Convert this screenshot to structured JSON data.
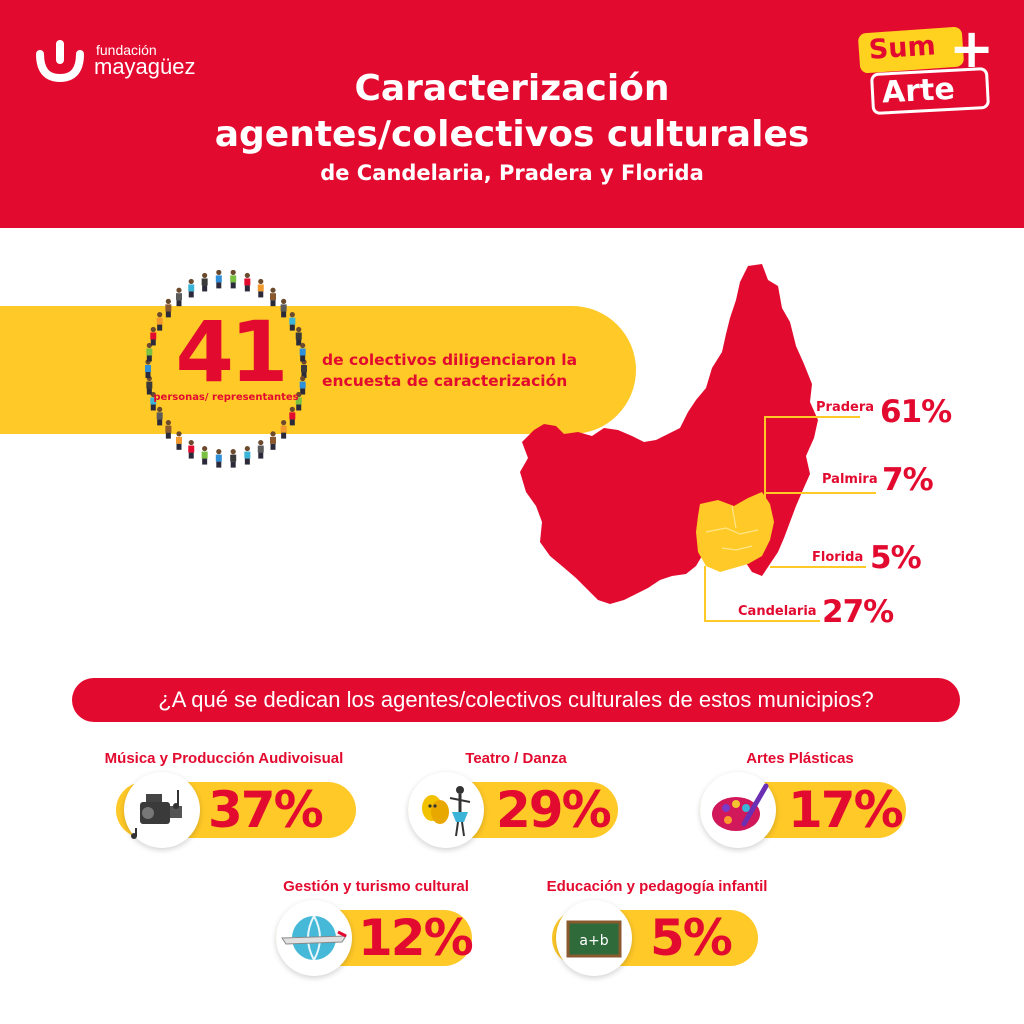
{
  "brand": {
    "logo_line1": "fundación",
    "logo_line2": "mayagüez",
    "badge_sum": "Sum",
    "badge_plus": "+",
    "badge_arte": "Arte"
  },
  "title": {
    "line1": "Caracterización",
    "line2": "agentes/colectivos culturales",
    "line3": "de Candelaria, Pradera y Florida"
  },
  "survey": {
    "count": "41",
    "count_label": "personas/ representantes",
    "description": "de colectivos diligenciaron la encuesta de caracterización"
  },
  "municipalities": [
    {
      "name": "Pradera",
      "percent": "61%",
      "value": 61
    },
    {
      "name": "Palmira",
      "percent": "7%",
      "value": 7
    },
    {
      "name": "Florida",
      "percent": "5%",
      "value": 5
    },
    {
      "name": "Candelaria",
      "percent": "27%",
      "value": 27
    }
  ],
  "question": "¿A qué se dedican los agentes/colectivos culturales de estos municipios?",
  "categories": [
    {
      "label": "Música y Producción Audivoisual",
      "percent": "37%",
      "value": 37,
      "icon": "video-camera-icon"
    },
    {
      "label": "Teatro / Danza",
      "percent": "29%",
      "value": 29,
      "icon": "theater-masks-icon"
    },
    {
      "label": "Artes Plásticas",
      "percent": "17%",
      "value": 17,
      "icon": "paint-palette-icon"
    },
    {
      "label": "Gestión y turismo cultural",
      "percent": "12%",
      "value": 12,
      "icon": "globe-airplane-icon"
    },
    {
      "label": "Educación y pedagogía infantil",
      "percent": "5%",
      "value": 5,
      "icon": "chalkboard-icon"
    }
  ],
  "colors": {
    "red": "#e30a2f",
    "yellow": "#ffc928",
    "white": "#ffffff"
  }
}
